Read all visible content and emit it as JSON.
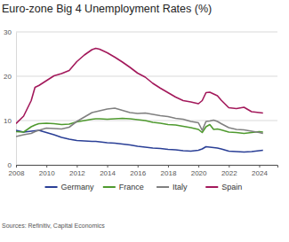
{
  "chart_data": {
    "type": "line",
    "title": "Euro-zone Big 4 Unemployment Rates (%)",
    "source": "Sources: Refinitiv, Capital Economics",
    "x": [
      2008,
      2008.5,
      2009,
      2009.25,
      2009.5,
      2010,
      2010.5,
      2011,
      2011.5,
      2012,
      2012.5,
      2013,
      2013.25,
      2013.5,
      2014,
      2014.5,
      2015,
      2015.5,
      2016,
      2016.5,
      2017,
      2017.5,
      2018,
      2018.5,
      2019,
      2019.5,
      2020,
      2020.25,
      2020.5,
      2020.75,
      2021,
      2021.25,
      2021.5,
      2022,
      2022.5,
      2023,
      2023.5,
      2024,
      2024.25
    ],
    "series": [
      {
        "name": "Germany",
        "color": "#2a3f96",
        "values": [
          7.8,
          7.4,
          7.6,
          7.7,
          7.8,
          7.3,
          6.8,
          6.2,
          5.8,
          5.5,
          5.4,
          5.3,
          5.3,
          5.2,
          5.0,
          4.9,
          4.7,
          4.5,
          4.2,
          4.0,
          3.8,
          3.7,
          3.5,
          3.4,
          3.2,
          3.1,
          3.3,
          3.6,
          4.1,
          4.0,
          3.9,
          3.8,
          3.6,
          3.1,
          3.0,
          2.9,
          3.0,
          3.2,
          3.3
        ]
      },
      {
        "name": "France",
        "color": "#4f9a2f",
        "values": [
          7.5,
          7.4,
          8.6,
          9.0,
          9.3,
          9.4,
          9.3,
          9.1,
          9.2,
          9.7,
          10.0,
          10.3,
          10.4,
          10.4,
          10.3,
          10.4,
          10.5,
          10.4,
          10.2,
          10.0,
          9.6,
          9.4,
          9.1,
          9.0,
          8.7,
          8.4,
          8.0,
          7.3,
          8.6,
          9.1,
          8.0,
          8.1,
          7.9,
          7.4,
          7.3,
          7.1,
          7.3,
          7.5,
          7.4
        ]
      },
      {
        "name": "Italy",
        "color": "#808080",
        "values": [
          6.4,
          6.8,
          7.1,
          7.5,
          7.8,
          8.3,
          8.2,
          8.1,
          8.5,
          9.8,
          10.8,
          11.8,
          12.0,
          12.2,
          12.6,
          12.8,
          12.3,
          11.8,
          11.6,
          11.7,
          11.4,
          11.1,
          10.9,
          10.5,
          10.3,
          9.8,
          9.5,
          7.8,
          9.8,
          9.9,
          10.1,
          9.8,
          9.3,
          8.4,
          8.0,
          7.9,
          7.6,
          7.3,
          7.1
        ]
      },
      {
        "name": "Spain",
        "color": "#a3195b",
        "values": [
          9.3,
          11.0,
          14.5,
          17.5,
          17.9,
          19.0,
          20.1,
          20.6,
          21.3,
          23.3,
          24.8,
          26.0,
          26.3,
          26.1,
          25.3,
          24.3,
          23.2,
          22.0,
          20.7,
          19.8,
          18.4,
          17.3,
          16.3,
          15.3,
          14.5,
          14.2,
          13.8,
          14.5,
          16.3,
          16.4,
          16.0,
          15.6,
          14.6,
          12.9,
          12.7,
          13.0,
          12.0,
          11.8,
          11.7
        ]
      }
    ],
    "xlim": [
      2008,
      2025.2
    ],
    "xticks": [
      2008,
      2010,
      2012,
      2014,
      2016,
      2018,
      2020,
      2022,
      2024
    ],
    "ylim": [
      0,
      30
    ],
    "yticks": [
      0,
      10,
      20,
      30
    ],
    "grid": true,
    "legend": "bottom"
  }
}
